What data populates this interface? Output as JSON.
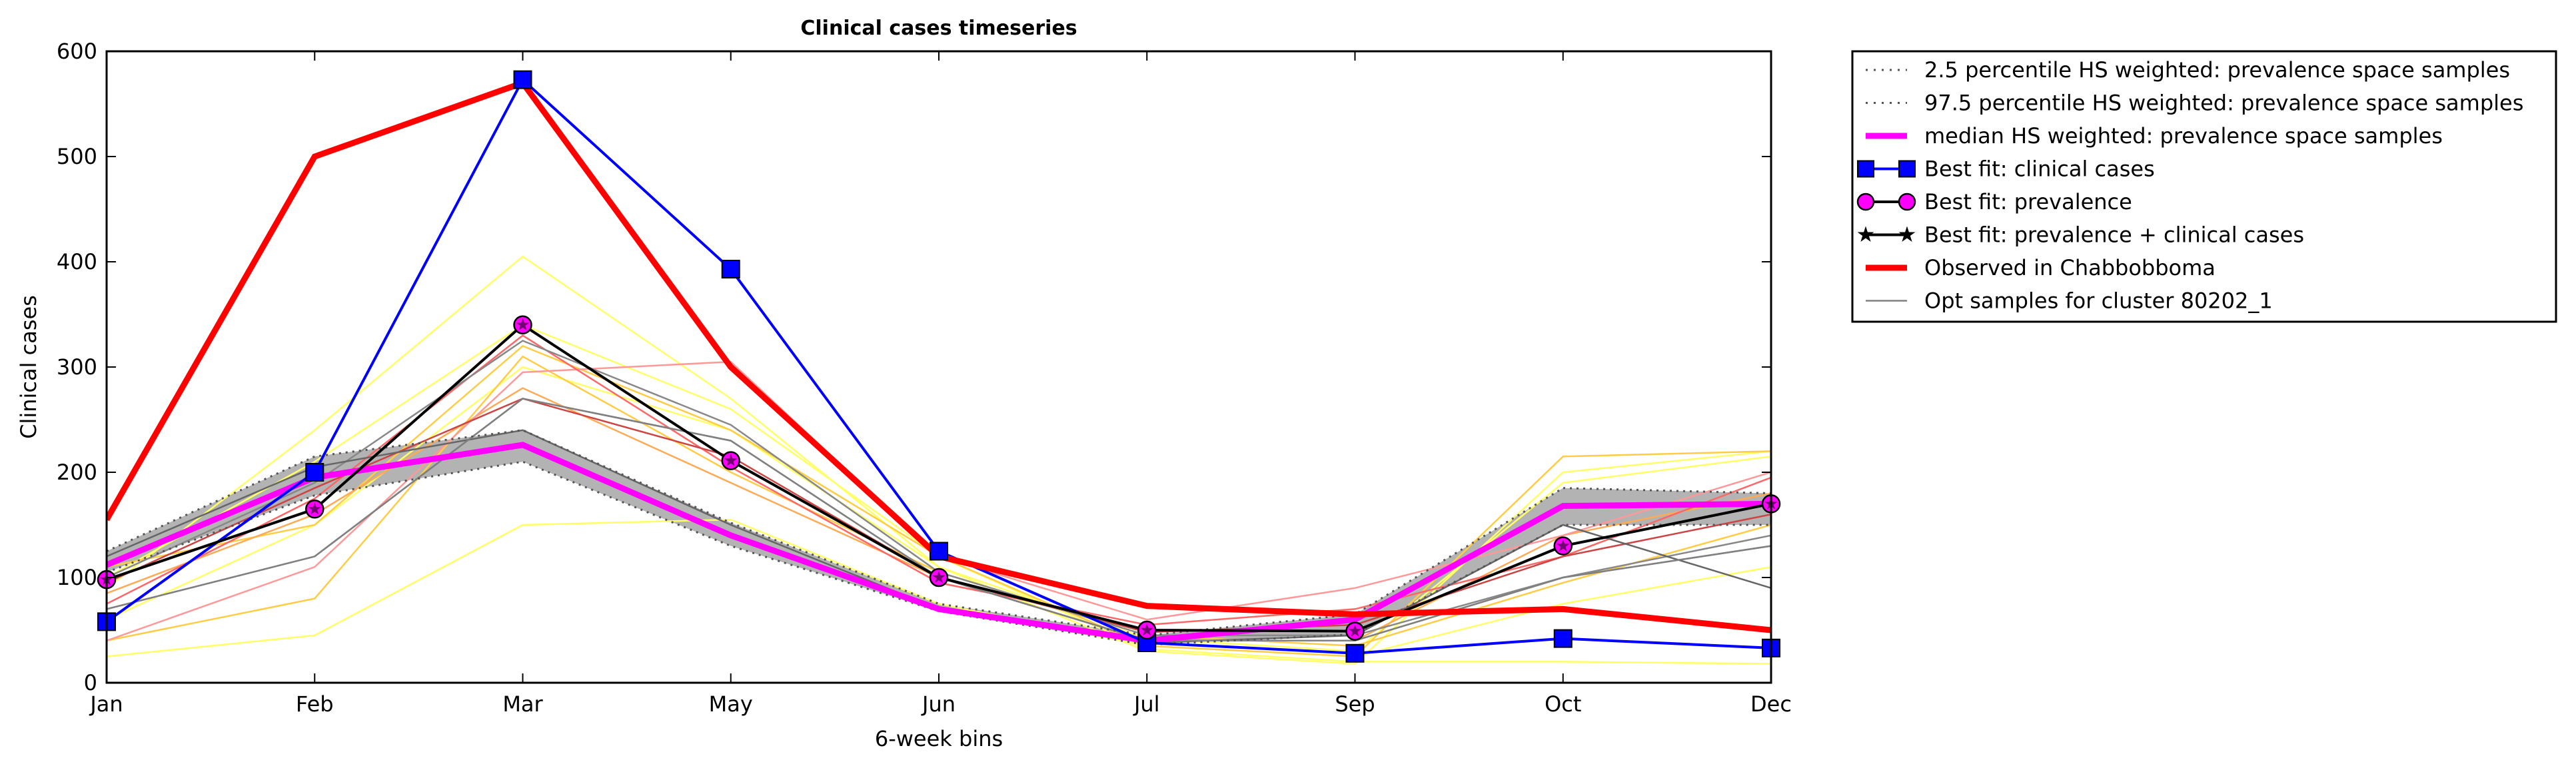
{
  "chart_data": {
    "type": "line",
    "title": "Clinical cases timeseries",
    "xlabel": "6-week bins",
    "ylabel": "Clinical cases",
    "categories": [
      "Jan",
      "Feb",
      "Mar",
      "May",
      "Jun",
      "Jul",
      "Sep",
      "Oct",
      "Dec"
    ],
    "ylim": [
      0,
      600
    ],
    "yticks": [
      "0",
      "100",
      "200",
      "300",
      "400",
      "500",
      "600"
    ],
    "grid": false,
    "legend_position": "outside-right",
    "band": {
      "lower": [
        105,
        178,
        210,
        130,
        68,
        36,
        46,
        150,
        150
      ],
      "upper": [
        125,
        215,
        240,
        152,
        75,
        45,
        65,
        185,
        180
      ],
      "fill": "#b3b3b3"
    },
    "series": [
      {
        "name": "2.5 percentile HS weighted: prevalence space samples",
        "color": "#555555",
        "values": [
          105,
          178,
          210,
          130,
          68,
          36,
          46,
          150,
          150
        ],
        "style": "dotted",
        "legend": true
      },
      {
        "name": "97.5 percentile HS weighted: prevalence space samples",
        "color": "#555555",
        "values": [
          125,
          215,
          240,
          152,
          75,
          45,
          65,
          185,
          180
        ],
        "style": "dotted",
        "legend": true
      },
      {
        "name": "median HS weighted: prevalence space samples",
        "color": "#ff00ff",
        "values": [
          112,
          195,
          226,
          140,
          70,
          40,
          60,
          168,
          170
        ],
        "style": "thick",
        "legend": true
      },
      {
        "name": "Best fit: clinical cases",
        "color": "#0000ff",
        "values": [
          58,
          200,
          573,
          393,
          125,
          38,
          28,
          42,
          33
        ],
        "marker": "square",
        "legend": true
      },
      {
        "name": "Best fit: prevalence",
        "color": "#000000",
        "marker_fill": "#ff00ff",
        "values": [
          98,
          165,
          340,
          211,
          100,
          50,
          49,
          130,
          170
        ],
        "marker": "circle",
        "legend": true
      },
      {
        "name": "Best fit: prevalence + clinical cases",
        "color": "#000000",
        "values": [
          98,
          165,
          340,
          211,
          100,
          50,
          49,
          130,
          170
        ],
        "marker": "star",
        "legend": true
      },
      {
        "name": "Observed in Chabbobboma",
        "color": "#ff0000",
        "values": [
          155,
          500,
          570,
          300,
          120,
          73,
          65,
          70,
          50
        ],
        "style": "observed",
        "legend": true
      },
      {
        "name": "Opt samples for cluster 80202_1",
        "color": "#808080",
        "values": [
          70,
          120,
          270,
          230,
          100,
          40,
          40,
          100,
          130
        ],
        "style": "sample",
        "legend": true
      }
    ],
    "samples": [
      {
        "color": "#ffff66",
        "values": [
          25,
          45,
          150,
          155,
          75,
          35,
          25,
          75,
          110
        ]
      },
      {
        "color": "#ffff66",
        "values": [
          90,
          240,
          405,
          270,
          110,
          30,
          18,
          200,
          220
        ]
      },
      {
        "color": "#ffff66",
        "values": [
          100,
          210,
          340,
          260,
          120,
          32,
          20,
          20,
          18
        ]
      },
      {
        "color": "#ffff66",
        "values": [
          60,
          150,
          300,
          240,
          110,
          42,
          30,
          190,
          215
        ]
      },
      {
        "color": "#ffcc44",
        "values": [
          110,
          150,
          320,
          240,
          120,
          35,
          25,
          215,
          220
        ]
      },
      {
        "color": "#ffcc44",
        "values": [
          40,
          80,
          310,
          200,
          105,
          45,
          35,
          95,
          150
        ]
      },
      {
        "color": "#ffaa55",
        "values": [
          85,
          160,
          280,
          190,
          100,
          40,
          40,
          140,
          180
        ]
      },
      {
        "color": "#ff9999",
        "values": [
          40,
          110,
          295,
          305,
          120,
          60,
          90,
          140,
          200
        ]
      },
      {
        "color": "#ff6666",
        "values": [
          75,
          175,
          330,
          205,
          95,
          55,
          70,
          120,
          195
        ]
      },
      {
        "color": "#cc4444",
        "values": [
          95,
          185,
          270,
          215,
          100,
          48,
          55,
          120,
          160
        ]
      },
      {
        "color": "#888888",
        "values": [
          70,
          120,
          270,
          230,
          100,
          40,
          40,
          100,
          130
        ]
      },
      {
        "color": "#888888",
        "values": [
          100,
          190,
          325,
          245,
          105,
          45,
          45,
          100,
          140
        ]
      },
      {
        "color": "#666666",
        "values": [
          120,
          205,
          240,
          150,
          70,
          38,
          45,
          150,
          90
        ]
      }
    ]
  }
}
